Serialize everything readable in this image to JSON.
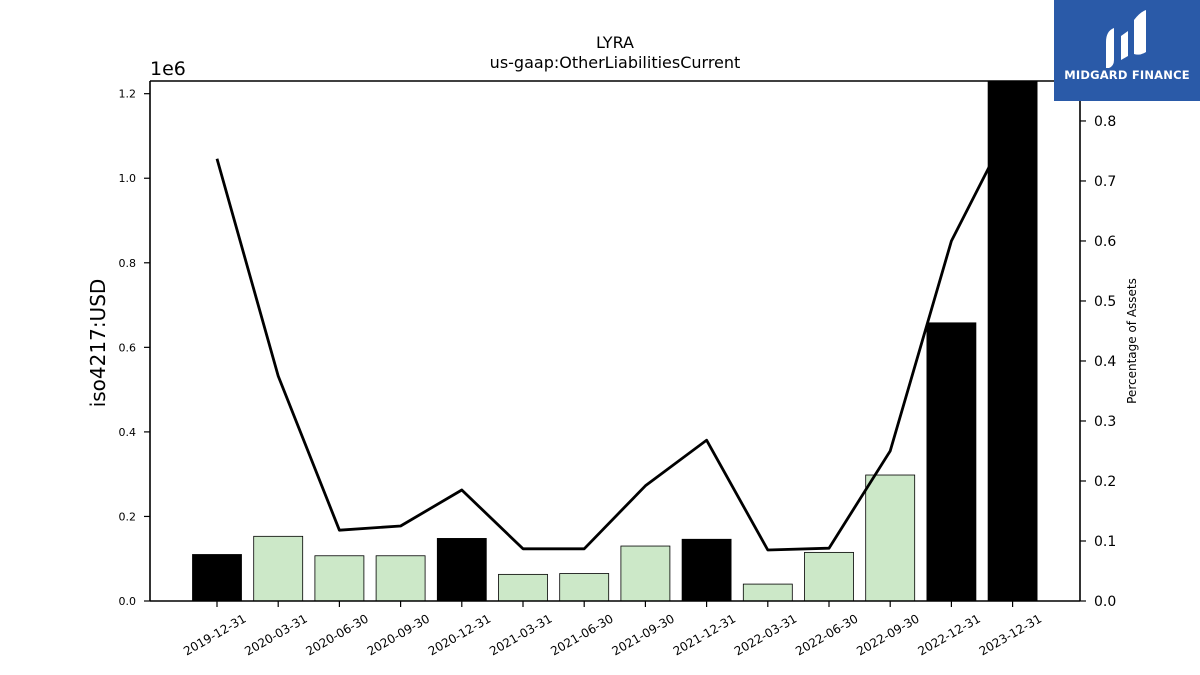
{
  "chart_data": {
    "type": "bar",
    "title": "LYRA",
    "subtitle": "us-gaap:OtherLiabilitiesCurrent",
    "ylabel": "iso4217:USD",
    "ylabel_right": "Percentage of Assets",
    "y_multiplier": "1e6",
    "categories": [
      "2019-12-31",
      "2020-03-31",
      "2020-06-30",
      "2020-09-30",
      "2020-12-31",
      "2021-03-31",
      "2021-06-30",
      "2021-09-30",
      "2021-12-31",
      "2022-03-31",
      "2022-06-30",
      "2022-09-30",
      "2022-12-31",
      "2023-12-31"
    ],
    "values": [
      110000,
      153000,
      107000,
      107000,
      148000,
      63000,
      65000,
      130000,
      146000,
      40000,
      115000,
      298000,
      658000,
      1230000
    ],
    "period_type": [
      "annual",
      "quarterly",
      "quarterly",
      "quarterly",
      "annual",
      "quarterly",
      "quarterly",
      "quarterly",
      "annual",
      "quarterly",
      "quarterly",
      "quarterly",
      "annual",
      "annual"
    ],
    "percent_of_assets": [
      0.737,
      0.375,
      0.118,
      0.125,
      0.185,
      0.087,
      0.087,
      0.192,
      0.268,
      0.085,
      0.088,
      0.25,
      0.6,
      0.8
    ],
    "ylim": [
      0,
      1230000
    ],
    "yticks": [
      "0.0",
      "0.2",
      "0.4",
      "0.6",
      "0.8",
      "1.0",
      "1.2"
    ],
    "ylim_right": [
      0,
      0.8666
    ],
    "yticks_right": [
      "0.0",
      "0.1",
      "0.2",
      "0.3",
      "0.4",
      "0.5",
      "0.6",
      "0.7",
      "0.8"
    ],
    "colors": {
      "annual": "#000000",
      "quarterly": "#cce8c8",
      "line": "#000000"
    }
  },
  "logo": {
    "text": "MIDGARD FINANCE"
  }
}
